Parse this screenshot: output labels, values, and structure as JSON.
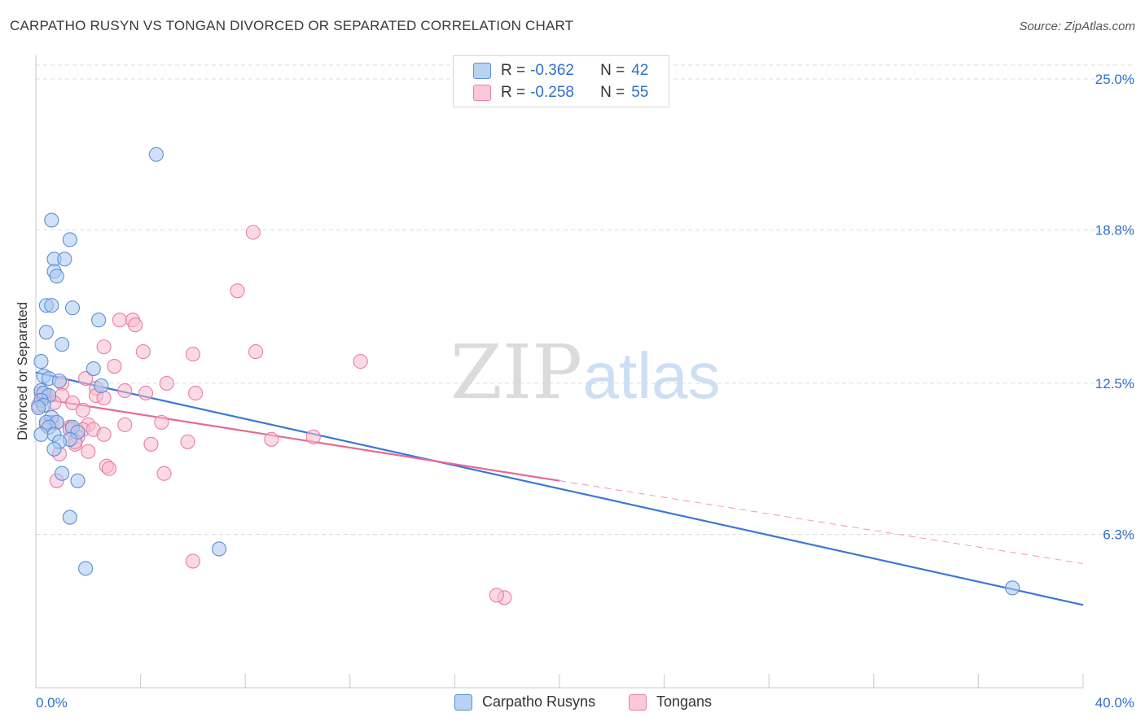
{
  "title": "CARPATHO RUSYN VS TONGAN DIVORCED OR SEPARATED CORRELATION CHART",
  "source": "Source: ZipAtlas.com",
  "watermark": {
    "zip": "ZIP",
    "atlas": "atlas"
  },
  "colors": {
    "blue_fill": "#a9c8f0",
    "blue_stroke": "#5b8fd6",
    "blue_line": "#3a78d4",
    "pink_fill": "#f7bcd0",
    "pink_stroke": "#e87fa3",
    "pink_line": "#e46a97",
    "value_text": "#2f6fca",
    "grid": "#dcdcdc"
  },
  "legend_top": {
    "rows": [
      {
        "r_label": "R =",
        "r_value": "-0.362",
        "n_label": "N =",
        "n_value": "42"
      },
      {
        "r_label": "R =",
        "r_value": "-0.258",
        "n_label": "N =",
        "n_value": "55"
      }
    ]
  },
  "legend_bottom": {
    "items": [
      "Carpatho Rusyns",
      "Tongans"
    ]
  },
  "chart_data": {
    "type": "scatter",
    "title": "CARPATHO RUSYN VS TONGAN DIVORCED OR SEPARATED CORRELATION CHART",
    "xlabel": "",
    "ylabel": "Divorced or Separated",
    "xlim": [
      0,
      40
    ],
    "ylim": [
      0,
      26.2
    ],
    "x_tick_labels": [
      "0.0%",
      "40.0%"
    ],
    "y_ticks": [
      6.3,
      12.5,
      18.8,
      25.0
    ],
    "y_tick_labels": [
      "6.3%",
      "12.5%",
      "18.8%",
      "25.0%"
    ],
    "grid": true,
    "legend_position": "top-center",
    "series": [
      {
        "name": "Carpatho Rusyns",
        "r": -0.362,
        "n": 42,
        "trend": {
          "x": [
            0.0,
            40.0
          ],
          "y": [
            12.95,
            3.4
          ],
          "dashed_from": null
        },
        "points": [
          [
            4.6,
            21.9
          ],
          [
            0.6,
            19.2
          ],
          [
            1.3,
            18.4
          ],
          [
            0.7,
            17.6
          ],
          [
            1.1,
            17.6
          ],
          [
            0.7,
            17.1
          ],
          [
            0.8,
            16.9
          ],
          [
            0.4,
            15.7
          ],
          [
            0.6,
            15.7
          ],
          [
            1.4,
            15.6
          ],
          [
            2.4,
            15.1
          ],
          [
            0.4,
            14.6
          ],
          [
            1.0,
            14.1
          ],
          [
            0.2,
            13.4
          ],
          [
            2.2,
            13.1
          ],
          [
            0.3,
            12.8
          ],
          [
            0.5,
            12.7
          ],
          [
            0.9,
            12.6
          ],
          [
            2.5,
            12.4
          ],
          [
            0.2,
            12.2
          ],
          [
            0.3,
            12.1
          ],
          [
            0.5,
            12.0
          ],
          [
            0.2,
            11.8
          ],
          [
            0.3,
            11.6
          ],
          [
            0.1,
            11.5
          ],
          [
            0.6,
            11.1
          ],
          [
            0.4,
            10.9
          ],
          [
            0.8,
            10.9
          ],
          [
            0.5,
            10.7
          ],
          [
            1.4,
            10.7
          ],
          [
            1.6,
            10.5
          ],
          [
            0.7,
            10.4
          ],
          [
            0.2,
            10.4
          ],
          [
            1.3,
            10.2
          ],
          [
            0.9,
            10.1
          ],
          [
            0.7,
            9.8
          ],
          [
            1.0,
            8.8
          ],
          [
            1.6,
            8.5
          ],
          [
            1.3,
            7.0
          ],
          [
            7.0,
            5.7
          ],
          [
            1.9,
            4.9
          ],
          [
            37.3,
            4.1
          ]
        ]
      },
      {
        "name": "Tongans",
        "r": -0.258,
        "n": 55,
        "trend": {
          "x": [
            0.0,
            20.0,
            40.0
          ],
          "y": [
            11.9,
            8.5,
            5.1
          ],
          "dashed_from": 20.0
        },
        "points": [
          [
            8.3,
            18.7
          ],
          [
            7.7,
            16.3
          ],
          [
            3.2,
            15.1
          ],
          [
            3.7,
            15.1
          ],
          [
            3.8,
            14.9
          ],
          [
            2.6,
            14.0
          ],
          [
            4.1,
            13.8
          ],
          [
            8.4,
            13.8
          ],
          [
            6.0,
            13.7
          ],
          [
            12.4,
            13.4
          ],
          [
            3.0,
            13.2
          ],
          [
            1.9,
            12.7
          ],
          [
            1.0,
            12.5
          ],
          [
            5.0,
            12.5
          ],
          [
            2.3,
            12.3
          ],
          [
            3.4,
            12.2
          ],
          [
            4.2,
            12.1
          ],
          [
            6.1,
            12.1
          ],
          [
            0.4,
            12.0
          ],
          [
            1.0,
            12.0
          ],
          [
            2.3,
            12.0
          ],
          [
            2.6,
            11.9
          ],
          [
            0.7,
            11.7
          ],
          [
            1.4,
            11.7
          ],
          [
            0.1,
            11.6
          ],
          [
            1.8,
            11.4
          ],
          [
            0.6,
            10.9
          ],
          [
            0.8,
            10.9
          ],
          [
            0.4,
            10.8
          ],
          [
            3.4,
            10.8
          ],
          [
            2.0,
            10.8
          ],
          [
            1.3,
            10.7
          ],
          [
            1.8,
            10.6
          ],
          [
            4.8,
            10.9
          ],
          [
            2.2,
            10.6
          ],
          [
            2.6,
            10.4
          ],
          [
            1.3,
            10.6
          ],
          [
            1.6,
            10.3
          ],
          [
            10.6,
            10.3
          ],
          [
            9.0,
            10.2
          ],
          [
            1.5,
            10.0
          ],
          [
            5.8,
            10.1
          ],
          [
            1.5,
            10.1
          ],
          [
            4.4,
            10.0
          ],
          [
            0.9,
            9.6
          ],
          [
            2.0,
            9.7
          ],
          [
            2.7,
            9.1
          ],
          [
            2.8,
            9.0
          ],
          [
            4.9,
            8.8
          ],
          [
            0.8,
            8.5
          ],
          [
            6.0,
            5.2
          ],
          [
            17.9,
            3.7
          ],
          [
            17.6,
            3.8
          ],
          [
            0.3,
            11.9
          ],
          [
            0.2,
            12.1
          ]
        ]
      }
    ]
  }
}
